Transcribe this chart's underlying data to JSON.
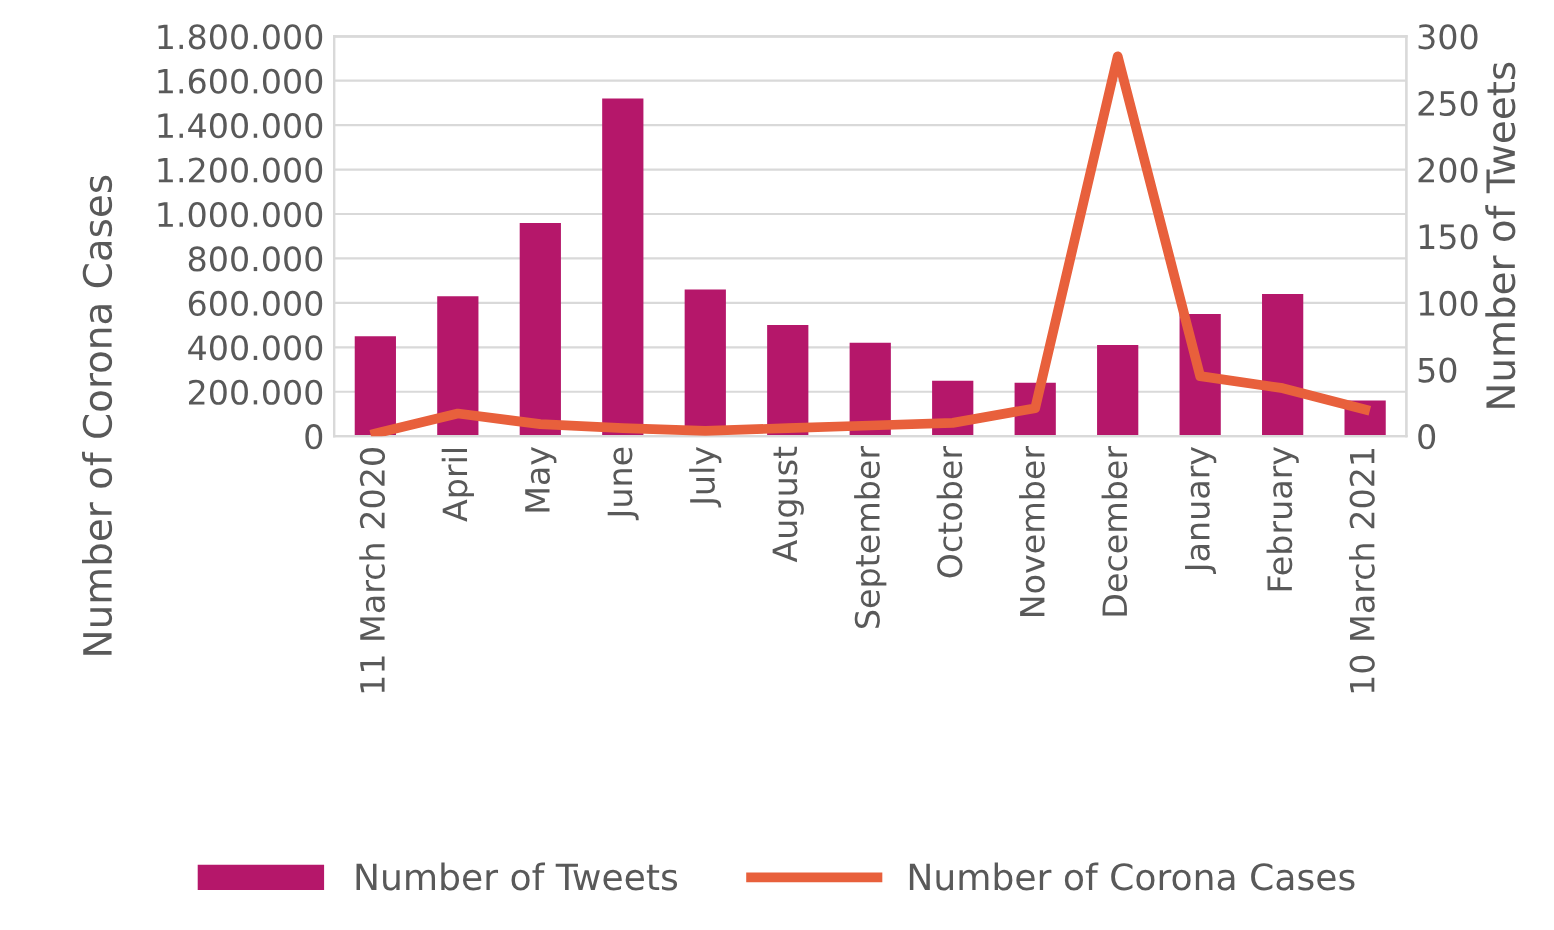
{
  "chart_data": {
    "type": "bar",
    "ylabel": "Number of Corona Cases",
    "y2label": "Number of Tweets",
    "categories": [
      "11 March 2020",
      "April",
      "May",
      "June",
      "July",
      "August",
      "September",
      "October",
      "November",
      "December",
      "January",
      "February",
      "10 March 2021"
    ],
    "series": [
      {
        "name": "Number of Tweets",
        "color": "#b5176a",
        "values": [
          450000,
          630000,
          960000,
          1520000,
          660000,
          500000,
          420000,
          250000,
          240000,
          410000,
          550000,
          640000,
          160000
        ]
      },
      {
        "name": "Number of Corona Cases",
        "type": "line",
        "axis": "y2",
        "color": "#e8603c",
        "values": [
          2,
          17,
          9,
          6,
          4,
          6,
          8,
          10,
          21,
          285,
          45,
          36,
          20
        ]
      }
    ],
    "ylim": [
      0,
      1800000
    ],
    "yticks": [
      0,
      {
        "value": 200000,
        "label": "200.000"
      },
      {
        "value": 400000,
        "label": "400.000"
      },
      {
        "value": 600000,
        "label": "600.000"
      },
      {
        "value": 800000,
        "label": "800.000"
      },
      {
        "value": 1000000,
        "label": "1.000.000"
      },
      {
        "value": 1200000,
        "label": "1.200.000"
      },
      {
        "value": 1400000,
        "label": "1.400.000"
      },
      {
        "value": 1600000,
        "label": "1.600.000"
      },
      {
        "value": 1800000,
        "label": "1.800.000"
      }
    ],
    "y2lim": [
      0,
      300
    ],
    "y2ticks": [
      0,
      50,
      100,
      150,
      200,
      250,
      300
    ],
    "grid": "y",
    "legend": "bottom",
    "marker": "none",
    "line_style": "solid"
  }
}
